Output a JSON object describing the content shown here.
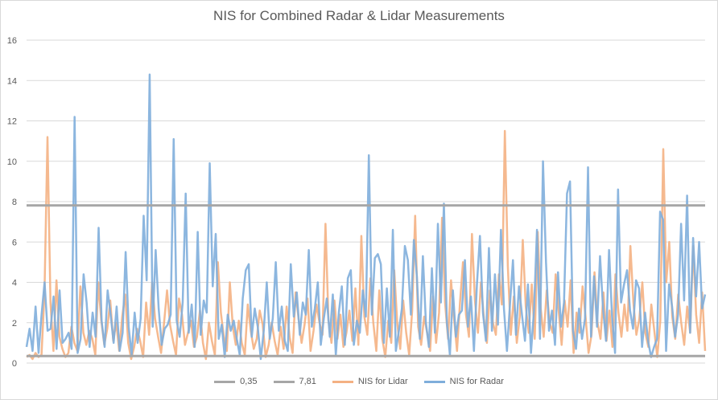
{
  "chart_data": {
    "type": "line",
    "title": "NIS for Combined Radar & Lidar Measurements",
    "xlabel": "",
    "ylabel": "",
    "ylim": [
      0,
      16
    ],
    "yticks": [
      0,
      2,
      4,
      6,
      8,
      10,
      12,
      14,
      16
    ],
    "grid": true,
    "legend_position": "bottom",
    "colors": {
      "threshold_low": "#a6a6a6",
      "threshold_high": "#a6a6a6",
      "lidar": "#f4b183",
      "radar": "#7faedb"
    },
    "series": [
      {
        "name": "0,35",
        "kind": "constant",
        "value": 0.35
      },
      {
        "name": "7,81",
        "kind": "constant",
        "value": 7.81
      },
      {
        "name": "NIS for Lidar",
        "kind": "series",
        "values": [
          0.3,
          0.4,
          0.2,
          0.5,
          0.3,
          0.4,
          3.5,
          11.2,
          3.0,
          0.6,
          4.1,
          1.3,
          0.7,
          0.3,
          0.5,
          1.8,
          1.0,
          0.6,
          3.8,
          1.5,
          0.9,
          1.6,
          1.2,
          0.4,
          4.0,
          2.1,
          0.9,
          1.7,
          3.1,
          1.1,
          2.0,
          0.6,
          2.3,
          3.4,
          1.0,
          0.2,
          0.8,
          1.7,
          1.1,
          0.3,
          3.0,
          1.4,
          4.0,
          2.2,
          1.3,
          0.5,
          2.0,
          3.6,
          1.9,
          1.1,
          0.4,
          3.2,
          2.4,
          0.9,
          1.5,
          2.1,
          0.8,
          1.3,
          2.6,
          1.0,
          0.2,
          2.0,
          1.1,
          0.4,
          5.0,
          2.5,
          1.3,
          0.6,
          4.0,
          1.8,
          0.9,
          2.1,
          1.0,
          0.4,
          2.9,
          1.6,
          0.7,
          1.2,
          2.6,
          1.9,
          0.3,
          0.9,
          2.0,
          1.1,
          0.4,
          1.8,
          0.7,
          2.8,
          1.3,
          0.5,
          3.5,
          2.2,
          1.0,
          1.9,
          3.2,
          0.6,
          1.6,
          2.9,
          2.0,
          1.4,
          6.9,
          2.1,
          1.0,
          3.1,
          1.2,
          2.4,
          0.8,
          1.5,
          2.6,
          1.1,
          3.7,
          0.9,
          6.3,
          2.3,
          1.4,
          4.2,
          2.0,
          0.6,
          3.6,
          1.2,
          0.3,
          2.1,
          1.0,
          4.6,
          2.0,
          0.7,
          3.1,
          1.5,
          0.4,
          2.6,
          7.3,
          1.8,
          0.9,
          2.3,
          1.5,
          0.6,
          3.3,
          1.0,
          2.5,
          7.2,
          3.0,
          1.2,
          4.1,
          2.2,
          0.6,
          3.0,
          5.0,
          2.4,
          1.3,
          6.4,
          3.1,
          1.5,
          4.0,
          2.2,
          1.0,
          3.6,
          2.0,
          1.4,
          4.4,
          2.9,
          11.5,
          4.8,
          1.4,
          3.3,
          1.0,
          2.3,
          6.1,
          2.8,
          1.5,
          3.9,
          1.2,
          6.5,
          2.7,
          1.3,
          3.6,
          2.0,
          1.5,
          4.4,
          2.6,
          0.9,
          3.1,
          1.8,
          4.1,
          0.5,
          2.5,
          1.5,
          3.8,
          2.3,
          0.5,
          1.4,
          4.5,
          2.0,
          1.2,
          3.5,
          1.1,
          2.6,
          0.8,
          4.4,
          2.5,
          1.3,
          2.9,
          1.6,
          5.8,
          3.0,
          1.4,
          2.2,
          4.0,
          1.5,
          0.8,
          2.9,
          1.6,
          0.3,
          2.1,
          10.6,
          4.0,
          6.0,
          2.3,
          1.2,
          3.4,
          2.0,
          0.9,
          2.8,
          1.5,
          5.8,
          2.4,
          1.0,
          3.5,
          0.6
        ]
      },
      {
        "name": "NIS for Radar",
        "kind": "series",
        "values": [
          0.8,
          1.7,
          0.6,
          2.8,
          0.5,
          2.4,
          4.0,
          1.6,
          1.7,
          3.3,
          0.7,
          3.6,
          1.0,
          1.2,
          1.5,
          0.7,
          12.2,
          0.5,
          1.2,
          4.4,
          3.0,
          0.8,
          2.5,
          1.3,
          6.7,
          2.1,
          0.8,
          3.6,
          2.4,
          1.0,
          2.8,
          0.6,
          1.5,
          5.5,
          1.8,
          0.4,
          2.5,
          1.0,
          2.2,
          7.3,
          4.1,
          14.3,
          1.8,
          5.6,
          2.7,
          0.9,
          1.7,
          1.9,
          2.4,
          11.1,
          2.1,
          1.3,
          3.0,
          8.4,
          1.5,
          2.9,
          0.8,
          6.5,
          1.4,
          3.1,
          2.5,
          9.9,
          3.8,
          6.4,
          1.2,
          1.9,
          0.3,
          2.4,
          1.6,
          2.1,
          1.2,
          0.4,
          3.2,
          4.6,
          4.9,
          1.3,
          2.7,
          1.8,
          0.2,
          1.6,
          4.0,
          1.2,
          2.2,
          5.0,
          1.6,
          2.8,
          1.1,
          0.6,
          4.9,
          2.3,
          3.5,
          1.4,
          3.0,
          2.4,
          5.6,
          1.8,
          2.7,
          4.0,
          0.9,
          2.2,
          3.2,
          1.3,
          3.4,
          0.4,
          2.5,
          3.8,
          0.9,
          4.2,
          4.6,
          0.9,
          2.1,
          1.5,
          3.6,
          2.3,
          10.3,
          2.4,
          5.2,
          5.4,
          4.9,
          1.0,
          3.7,
          1.3,
          6.6,
          0.6,
          1.6,
          2.7,
          5.8,
          5.1,
          2.4,
          6.1,
          4.3,
          1.2,
          5.3,
          2.0,
          0.8,
          4.7,
          1.5,
          6.9,
          3.0,
          7.9,
          2.0,
          0.4,
          3.6,
          1.3,
          2.4,
          2.6,
          5.1,
          1.8,
          3.3,
          0.6,
          3.9,
          6.3,
          2.5,
          1.1,
          5.7,
          1.6,
          4.4,
          1.9,
          6.6,
          2.7,
          0.6,
          2.9,
          5.1,
          1.4,
          3.8,
          2.4,
          1.1,
          3.9,
          0.5,
          2.6,
          6.6,
          1.2,
          10.0,
          5.0,
          1.6,
          2.6,
          0.9,
          4.5,
          1.8,
          3.0,
          8.4,
          9.0,
          1.6,
          0.7,
          2.7,
          1.2,
          2.2,
          9.7,
          1.3,
          4.3,
          1.8,
          5.3,
          2.7,
          1.1,
          5.6,
          2.3,
          0.5,
          8.6,
          3.0,
          3.9,
          4.6,
          2.6,
          1.7,
          4.1,
          3.7,
          0.8,
          2.5,
          1.1,
          0.3,
          0.8,
          1.2,
          7.5,
          7.1,
          0.6,
          3.9,
          2.8,
          1.3,
          2.4,
          6.9,
          3.1,
          8.3,
          1.5,
          6.2,
          3.3,
          6.0,
          2.7,
          3.4
        ]
      }
    ]
  }
}
